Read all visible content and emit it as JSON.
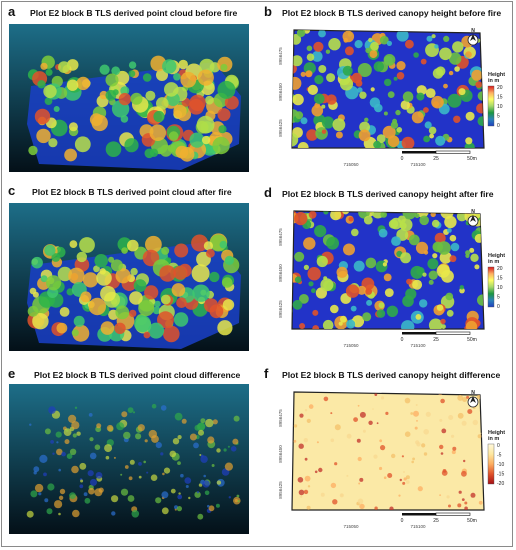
{
  "panels": [
    {
      "letter": "a",
      "title": "Plot E2 block B TLS derived point cloud before fire"
    },
    {
      "letter": "b",
      "title": "Plot E2 block B TLS derived canopy height before fire"
    },
    {
      "letter": "c",
      "title": "Plot E2 block B TLS derived point cloud after fire"
    },
    {
      "letter": "d",
      "title": "Plot E2 block B TLS derived canopy height after fire"
    },
    {
      "letter": "e",
      "title": "Plot E2 block B TLS derived point cloud difference"
    },
    {
      "letter": "f",
      "title": "Plot E2 block B TLS derived canopy height difference"
    }
  ],
  "maps": {
    "y_ticks": [
      "8956475",
      "8956450",
      "8956425"
    ],
    "x_ticks": [
      "715050",
      "715100"
    ],
    "scale_labels": [
      "0",
      "25",
      "50m"
    ],
    "north_label": "N"
  },
  "legend_height": {
    "title_line1": "Height",
    "title_line2": "in m",
    "ticks": [
      "20",
      "15",
      "10",
      "5",
      "0"
    ],
    "colors": [
      "#d7191c",
      "#fdae61",
      "#ffff66",
      "#a6d96a",
      "#1a9641",
      "#2b83ba",
      "#1f3fbf"
    ]
  },
  "legend_diff": {
    "title_line1": "Height",
    "title_line2": "in m",
    "ticks": [
      "0",
      "-5",
      "-10",
      "-15",
      "-20"
    ],
    "colors": [
      "#fff8dc",
      "#fee8a0",
      "#fdae61",
      "#e0522a",
      "#a50f15"
    ]
  }
}
